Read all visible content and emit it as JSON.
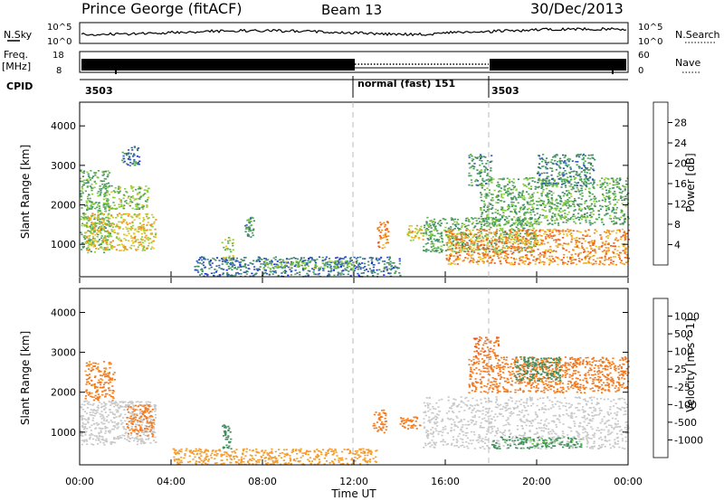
{
  "header": {
    "station": "Prince George (fitACF)",
    "beam": "Beam 13",
    "date": "30/Dec/2013"
  },
  "noise_panel": {
    "left_label": "N.Sky",
    "left_ticks": [
      "10^5",
      "10^0"
    ],
    "right_ticks": [
      "10^5",
      "10^0"
    ],
    "right_label": "N.Search"
  },
  "freq_panel": {
    "left_label_1": "Freq.",
    "left_label_2": "[MHz]",
    "left_ticks": [
      "18",
      "8"
    ],
    "right_ticks": [
      "60",
      "0"
    ],
    "right_label": "Nave"
  },
  "cpid_panel": {
    "label": "CPID",
    "segments": [
      {
        "start_hour": 0,
        "text": "3503"
      },
      {
        "start_hour": 12,
        "text": "normal (fast) 151"
      },
      {
        "start_hour": 18,
        "text": "3503"
      }
    ]
  },
  "colors": {
    "power": [
      "#1a2bdc",
      "#3057b8",
      "#3f8a6a",
      "#56a857",
      "#8ccf38",
      "#e8c22a",
      "#f38b1f",
      "#f05a1a",
      "#e11b14"
    ],
    "velocity": [
      "#e51d14",
      "#f04a18",
      "#f47a1f",
      "#f59c2a",
      "#c9c9c9",
      "#69c949",
      "#3e8f5d",
      "#2f59a5",
      "#1c3fc8"
    ]
  },
  "chart_data": [
    {
      "type": "heatmap",
      "name": "power",
      "ylabel": "Slant Range [km]",
      "xlabel": "",
      "xlim": [
        0,
        24
      ],
      "ylim": [
        180,
        4600
      ],
      "yticks": [
        "4000",
        "3000",
        "2000",
        "1000"
      ],
      "colorbar": {
        "label": "Power [dB]",
        "ticks": [
          "28",
          "24",
          "20",
          "16",
          "12",
          "8",
          "4"
        ]
      },
      "regions": [
        {
          "t0": 0.0,
          "t1": 1.3,
          "r0": 800,
          "r1": 2900,
          "v": 12
        },
        {
          "t0": 0.2,
          "t1": 3.3,
          "r0": 850,
          "r1": 1800,
          "v": 20
        },
        {
          "t0": 1.0,
          "t1": 3.0,
          "r0": 1900,
          "r1": 2500,
          "v": 14
        },
        {
          "t0": 1.8,
          "t1": 2.6,
          "r0": 3000,
          "r1": 3500,
          "v": 6
        },
        {
          "t0": 6.2,
          "t1": 6.7,
          "r0": 600,
          "r1": 1200,
          "v": 16
        },
        {
          "t0": 7.2,
          "t1": 7.6,
          "r0": 1200,
          "r1": 1700,
          "v": 10
        },
        {
          "t0": 5.0,
          "t1": 14.0,
          "r0": 200,
          "r1": 700,
          "v": 6
        },
        {
          "t0": 8.0,
          "t1": 12.0,
          "r0": 400,
          "r1": 600,
          "v": 14
        },
        {
          "t0": 13.0,
          "t1": 13.5,
          "r0": 900,
          "r1": 1600,
          "v": 24
        },
        {
          "t0": 14.3,
          "t1": 15.0,
          "r0": 1100,
          "r1": 1500,
          "v": 20
        },
        {
          "t0": 15.0,
          "t1": 20.0,
          "r0": 800,
          "r1": 1700,
          "v": 12
        },
        {
          "t0": 16.0,
          "t1": 24.0,
          "r0": 500,
          "r1": 1400,
          "v": 24
        },
        {
          "t0": 17.5,
          "t1": 24.0,
          "r0": 1500,
          "r1": 2700,
          "v": 12
        },
        {
          "t0": 17.0,
          "t1": 18.0,
          "r0": 2500,
          "r1": 3300,
          "v": 10
        },
        {
          "t0": 20.0,
          "t1": 22.5,
          "r0": 2500,
          "r1": 3300,
          "v": 8
        }
      ]
    },
    {
      "type": "heatmap",
      "name": "velocity",
      "ylabel": "Slant Range [km]",
      "xlabel": "Time UT",
      "xlim": [
        0,
        24
      ],
      "ylim": [
        180,
        4600
      ],
      "xticks": [
        "00:00",
        "04:00",
        "08:00",
        "12:00",
        "16:00",
        "20:00",
        "00:00"
      ],
      "yticks": [
        "4000",
        "3000",
        "2000",
        "1000"
      ],
      "colorbar": {
        "label": "Velocity [m s^-1]",
        "ticks": [
          "1000",
          "500",
          "100",
          "25",
          "-25",
          "-100",
          "-500",
          "-1000"
        ]
      },
      "regions": [
        {
          "t0": 0.0,
          "t1": 3.3,
          "r0": 700,
          "r1": 1800,
          "v": 0
        },
        {
          "t0": 0.2,
          "t1": 1.5,
          "r0": 1800,
          "r1": 2800,
          "v": -150
        },
        {
          "t0": 2.0,
          "t1": 3.2,
          "r0": 900,
          "r1": 1700,
          "v": -300
        },
        {
          "t0": 6.2,
          "t1": 6.6,
          "r0": 600,
          "r1": 1200,
          "v": 200
        },
        {
          "t0": 4.0,
          "t1": 13.0,
          "r0": 200,
          "r1": 600,
          "v": -60
        },
        {
          "t0": 12.8,
          "t1": 13.4,
          "r0": 1000,
          "r1": 1600,
          "v": -300
        },
        {
          "t0": 14.0,
          "t1": 15.0,
          "r0": 1100,
          "r1": 1400,
          "v": -300
        },
        {
          "t0": 15.0,
          "t1": 24.0,
          "r0": 600,
          "r1": 1900,
          "v": 0
        },
        {
          "t0": 18.0,
          "t1": 22.0,
          "r0": 600,
          "r1": 900,
          "v": 150
        },
        {
          "t0": 17.0,
          "t1": 24.0,
          "r0": 2000,
          "r1": 2900,
          "v": -300
        },
        {
          "t0": 17.2,
          "t1": 18.3,
          "r0": 2900,
          "r1": 3400,
          "v": -400
        },
        {
          "t0": 19.0,
          "t1": 21.0,
          "r0": 2300,
          "r1": 2900,
          "v": 200
        }
      ]
    }
  ]
}
